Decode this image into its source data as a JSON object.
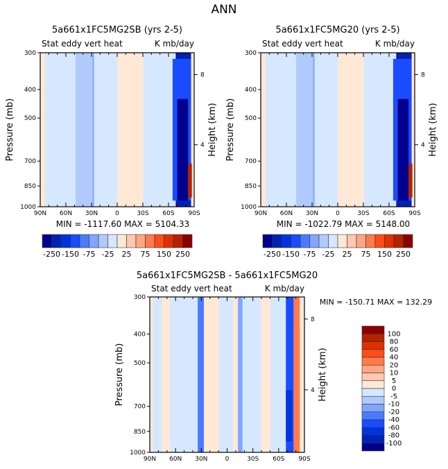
{
  "page_title": "ANN",
  "chart_data": [
    {
      "type": "heatmap",
      "title": "5a661x1FC5MG2SB (yrs 2-5)",
      "left_subtitle": "Stat eddy vert heat",
      "right_subtitle": "K mb/day",
      "ylabel": "Pressure (mb)",
      "y2label": "Height (km)",
      "x_ticks": [
        "90N",
        "60N",
        "30N",
        "0",
        "30S",
        "60S",
        "90S"
      ],
      "x_range": [
        90,
        -90
      ],
      "y_ticks": [
        "300",
        "400",
        "500",
        "700",
        "850",
        "1000"
      ],
      "y_tick_values": [
        300,
        400,
        500,
        700,
        850,
        1000
      ],
      "y_range": [
        300,
        1000
      ],
      "y2_ticks": [
        "8",
        "4"
      ],
      "stats": "MIN = -1117.60   MAX = 5104.33",
      "min": -1117.6,
      "max": 5104.33,
      "colorbar": {
        "orientation": "horizontal",
        "labels": [
          "-250",
          "-150",
          "-75",
          "-25",
          "25",
          "75",
          "150",
          "250"
        ],
        "levels": [
          -250,
          -200,
          -150,
          -100,
          -75,
          -50,
          -25,
          0,
          25,
          50,
          75,
          100,
          150,
          200,
          250
        ]
      }
    },
    {
      "type": "heatmap",
      "title": "5a661x1FC5MG20 (yrs 2-5)",
      "left_subtitle": "Stat eddy vert heat",
      "right_subtitle": "K mb/day",
      "ylabel": "Pressure (mb)",
      "y2label": "Height (km)",
      "x_ticks": [
        "90N",
        "60N",
        "30N",
        "0",
        "30S",
        "60S",
        "90S"
      ],
      "x_range": [
        90,
        -90
      ],
      "y_ticks": [
        "300",
        "400",
        "500",
        "700",
        "850",
        "1000"
      ],
      "y_tick_values": [
        300,
        400,
        500,
        700,
        850,
        1000
      ],
      "y_range": [
        300,
        1000
      ],
      "y2_ticks": [
        "8",
        "4"
      ],
      "stats": "MIN = -1022.79   MAX = 5148.00",
      "min": -1022.79,
      "max": 5148.0,
      "colorbar": {
        "orientation": "horizontal",
        "labels": [
          "-250",
          "-150",
          "-75",
          "-25",
          "25",
          "75",
          "150",
          "250"
        ],
        "levels": [
          -250,
          -200,
          -150,
          -100,
          -75,
          -50,
          -25,
          0,
          25,
          50,
          75,
          100,
          150,
          200,
          250
        ]
      }
    },
    {
      "type": "heatmap",
      "title": "5a661x1FC5MG2SB - 5a661x1FC5MG20",
      "left_subtitle": "Stat eddy vert heat",
      "right_subtitle": "K mb/day",
      "ylabel": "Pressure (mb)",
      "y2label": "Height (km)",
      "x_ticks": [
        "90N",
        "60N",
        "30N",
        "0",
        "30S",
        "60S",
        "90S"
      ],
      "x_range": [
        90,
        -90
      ],
      "y_ticks": [
        "300",
        "400",
        "500",
        "700",
        "850",
        "1000"
      ],
      "y_tick_values": [
        300,
        400,
        500,
        700,
        850,
        1000
      ],
      "y_range": [
        300,
        1000
      ],
      "y2_ticks": [
        "8",
        "4"
      ],
      "stats": "MIN = -150.71   MAX = 132.29",
      "min": -150.71,
      "max": 132.29,
      "colorbar": {
        "orientation": "vertical",
        "labels": [
          "100",
          "80",
          "60",
          "40",
          "20",
          "10",
          "5",
          "0",
          "-5",
          "-10",
          "-20",
          "-40",
          "-60",
          "-80",
          "-100"
        ]
      }
    }
  ],
  "palette": [
    "#00008c",
    "#0022b4",
    "#0033e0",
    "#1a4cff",
    "#4a7bff",
    "#80a6ff",
    "#b0caff",
    "#d6e8ff",
    "#ffe8d6",
    "#ffc8b0",
    "#ffa682",
    "#ff7b4a",
    "#ff4c1a",
    "#e03000",
    "#b42200",
    "#8c0000"
  ]
}
